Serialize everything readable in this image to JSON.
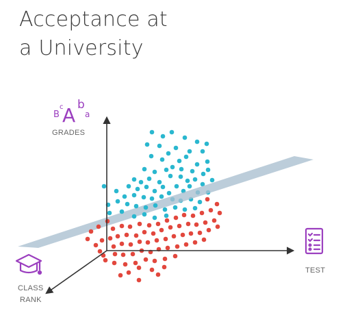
{
  "title": {
    "line1": "Acceptance at",
    "line2": "a University"
  },
  "axes": {
    "grades_label": "GRADES",
    "test_label": "TEST",
    "class_rank_label_line1": "CLASS",
    "class_rank_label_line2": "RANK"
  },
  "grades_icon_letters": {
    "big": "A",
    "b_small": "b",
    "a_small": "a",
    "c_small": "c",
    "B_small": "B"
  },
  "icons": {
    "grades": "grades-letters-icon",
    "test": "test-checklist-icon",
    "class_rank": "graduation-cap-icon"
  },
  "colors": {
    "accepted": "#2ab7cf",
    "rejected": "#e2473d",
    "plane": "#a9bfcf",
    "axis": "#333333",
    "icon_purple": "#9b3fbf",
    "title": "#3a3a3a",
    "label": "#666666"
  }
}
